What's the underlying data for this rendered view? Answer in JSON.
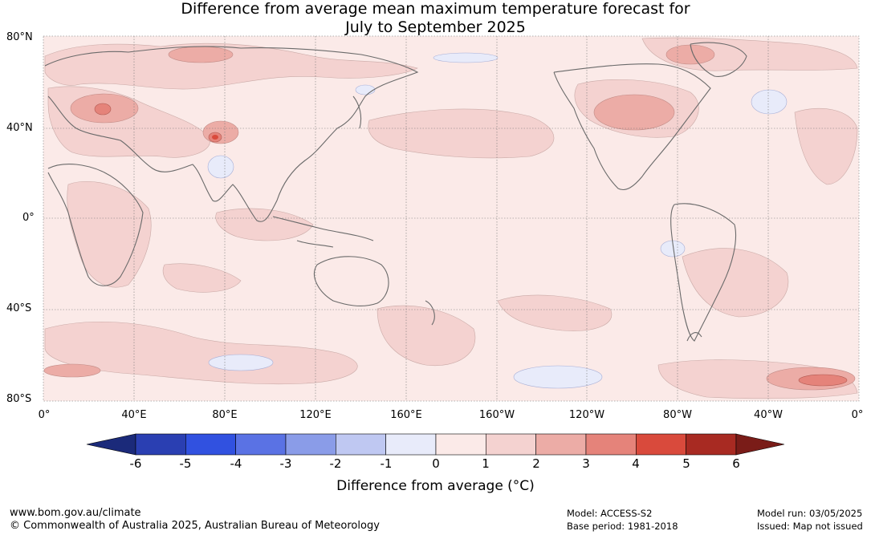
{
  "title_line1": "Difference from average mean maximum temperature forecast for",
  "title_line2": "July to September 2025",
  "lat_labels": [
    "80°N",
    "40°N",
    "0°",
    "40°S",
    "80°S"
  ],
  "lon_labels": [
    "0°",
    "40°E",
    "80°E",
    "120°E",
    "160°E",
    "160°W",
    "120°W",
    "80°W",
    "40°W",
    "0°"
  ],
  "colorbar": {
    "ticks": [
      "-6",
      "-5",
      "-4",
      "-3",
      "-2",
      "-1",
      "0",
      "1",
      "2",
      "3",
      "4",
      "5",
      "6"
    ],
    "colors": [
      "#1b2a7a",
      "#2a3fb2",
      "#3151e0",
      "#5a72e4",
      "#8a9ce8",
      "#bfc8f2",
      "#e8ebfa",
      "#fbeae8",
      "#f4d2d0",
      "#ecaca6",
      "#e5837a",
      "#d94a3c",
      "#a82a22",
      "#7a1c18"
    ],
    "label": "Difference from average (°C)"
  },
  "footer": {
    "url": "www.bom.gov.au/climate",
    "copyright": "© Commonwealth of Australia 2025, Australian Bureau of Meteorology",
    "model": "Model: ACCESS-S2",
    "base_period": "Base period: 1981-2018",
    "model_run": "Model run: 03/05/2025",
    "issued": "Issued: Map not issued"
  }
}
